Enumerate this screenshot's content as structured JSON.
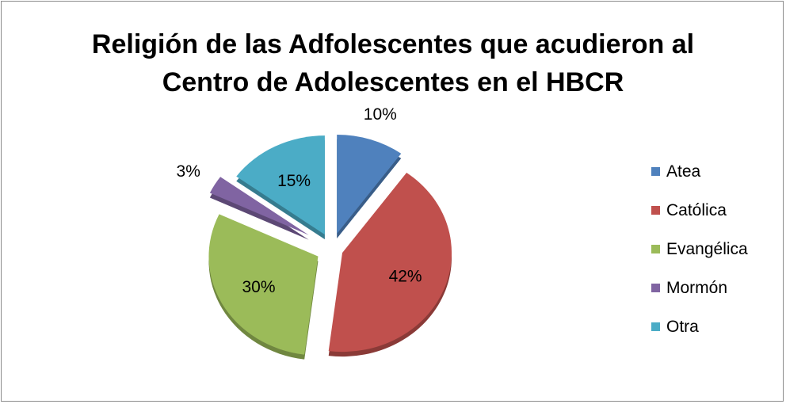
{
  "chart_data": {
    "type": "pie",
    "exploded": true,
    "three_d": true,
    "title": "Religión de las Adfolescentes que acudieron al Centro de Adolescentes en el HBCR",
    "title_lines": [
      "Religión de las Adfolescentes que acudieron al",
      "Centro de Adolescentes en el HBCR"
    ],
    "categories": [
      "Atea",
      "Católica",
      "Evangélica",
      "Mormón",
      "Otra"
    ],
    "values": [
      10,
      42,
      30,
      3,
      15
    ],
    "data_labels": [
      "10%",
      "42%",
      "30%",
      "3%",
      "15%"
    ],
    "colors": [
      "#4f81bd",
      "#c0504d",
      "#9bbb59",
      "#8064a2",
      "#4bacc6"
    ],
    "legend_position": "right"
  }
}
